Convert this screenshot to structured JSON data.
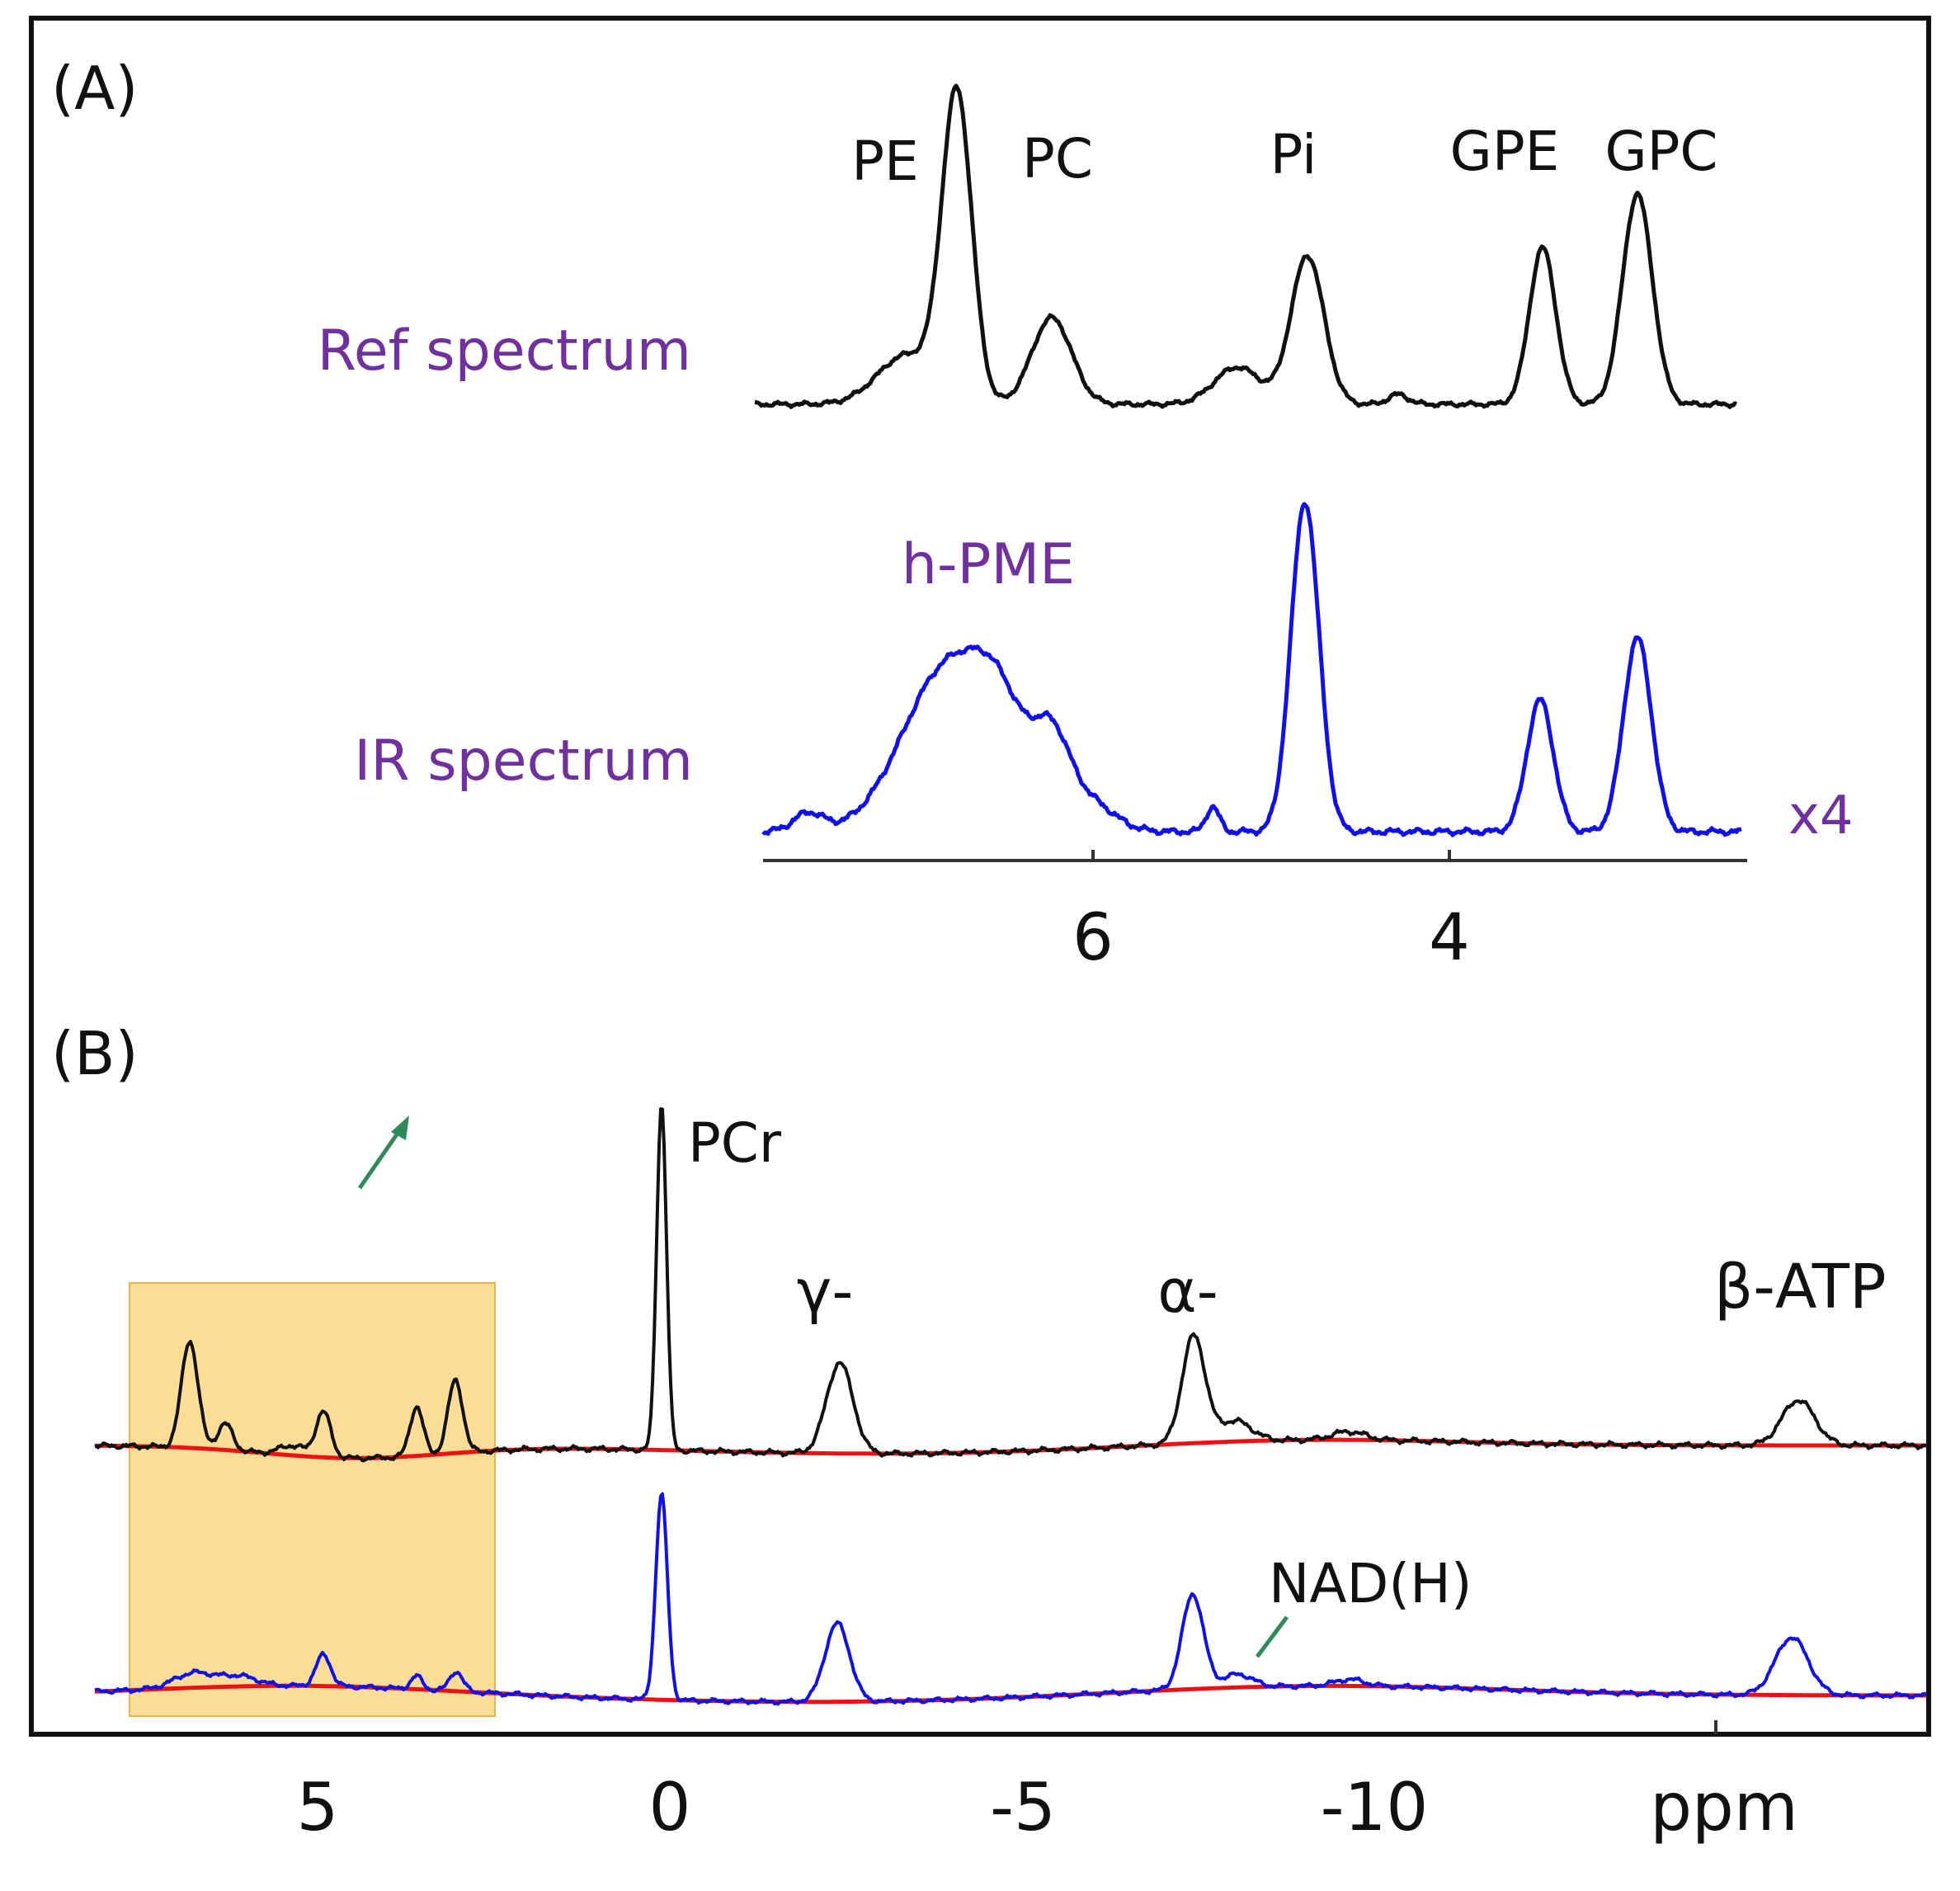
{
  "figure": {
    "panel_a_label": "(A)",
    "panel_b_label": "(B)"
  },
  "colors": {
    "ref": "#111111",
    "ir": "#1010ee",
    "baseline": "#ee1111",
    "label_purple": "#7030a0",
    "arrow_green": "#2e8b57",
    "highlight_fill": "#fcd98a",
    "highlight_stroke": "#e8b54a"
  },
  "chart_data": [
    {
      "panel": "A",
      "type": "line",
      "x_axis": {
        "range": [
          7.8,
          2.3
        ],
        "ticks": [
          6,
          4
        ],
        "tick_labels": [
          "6",
          "4"
        ],
        "reversed": true
      },
      "scale_label": "x4",
      "series": [
        {
          "name": "Ref spectrum",
          "peaks": [
            {
              "label": "PE",
              "x": 6.75
            },
            {
              "label": "PC",
              "x": 6.25
            },
            {
              "label": "Pi",
              "x": 4.8
            },
            {
              "label": "GPE",
              "x": 3.3
            },
            {
              "label": "GPC",
              "x": 2.8
            }
          ]
        },
        {
          "name": "IR spectrum",
          "peaks": [
            {
              "label": "h-PME",
              "x": 6.6
            }
          ]
        }
      ]
    },
    {
      "panel": "B",
      "type": "line",
      "x_axis": {
        "range": [
          8.2,
          -18.2
        ],
        "ticks": [
          5,
          0,
          -5,
          -10,
          -15
        ],
        "tick_labels": [
          "5",
          "0",
          "-5",
          "-10",
          ""
        ],
        "unit": "ppm",
        "reversed": true
      },
      "highlight_region": [
        7.8,
        2.6
      ],
      "series": [
        {
          "name": "upper",
          "peaks": [
            {
              "label": "PCr",
              "x": 0.0
            },
            {
              "label": "γ-",
              "x": -2.5
            },
            {
              "label": "α-",
              "x": -7.5
            },
            {
              "label": "β-ATP",
              "x": -16.0
            }
          ]
        },
        {
          "name": "lower",
          "peaks": [
            {
              "label": "NAD(H)",
              "x": -8.4
            }
          ]
        }
      ]
    }
  ]
}
